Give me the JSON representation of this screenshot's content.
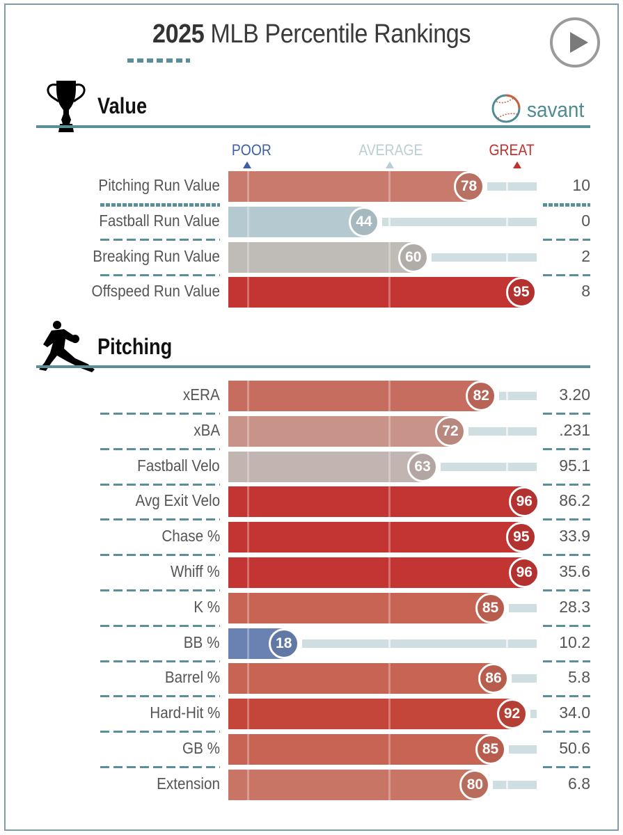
{
  "header": {
    "title_year": "2025",
    "title_rest": "MLB Percentile Rankings",
    "play_icon": "play-circle-icon",
    "brand": "savant",
    "brand_icon": "baseball-icon"
  },
  "scale": {
    "poor_label": "POOR",
    "average_label": "AVERAGE",
    "great_label": "GREAT",
    "poor_color": "#3d5fa3",
    "average_color": "#b9cfd4",
    "great_color": "#c0312f"
  },
  "colors": {
    "accent": "#5a8f99",
    "track": "#cfdfe1"
  },
  "chart_data": {
    "type": "bar",
    "orientation": "horizontal",
    "title": "2025 MLB Percentile Rankings",
    "xlabel": "Percentile",
    "xlim": [
      0,
      100
    ],
    "scale_markers": {
      "POOR": 6,
      "AVERAGE": 52,
      "GREAT": 94
    },
    "sections": [
      {
        "name": "Value",
        "icon": "trophy-icon",
        "rows": [
          {
            "label": "Pitching Run Value",
            "percentile": 78,
            "value": "10",
            "color": "#c87a6c"
          },
          {
            "label": "Fastball Run Value",
            "percentile": 44,
            "value": "0",
            "color": "#b4c9d0"
          },
          {
            "label": "Breaking Run Value",
            "percentile": 60,
            "value": "2",
            "color": "#bfbcb8"
          },
          {
            "label": "Offspeed Run Value",
            "percentile": 95,
            "value": "8",
            "color": "#c33533"
          }
        ]
      },
      {
        "name": "Pitching",
        "icon": "pitcher-icon",
        "rows": [
          {
            "label": "xERA",
            "percentile": 82,
            "value": "3.20",
            "color": "#c76d5f"
          },
          {
            "label": "xBA",
            "percentile": 72,
            "value": ".231",
            "color": "#c8948a"
          },
          {
            "label": "Fastball Velo",
            "percentile": 63,
            "value": "95.1",
            "color": "#c2b4b0"
          },
          {
            "label": "Avg Exit Velo",
            "percentile": 96,
            "value": "86.2",
            "color": "#c33533"
          },
          {
            "label": "Chase %",
            "percentile": 95,
            "value": "33.9",
            "color": "#c33533"
          },
          {
            "label": "Whiff %",
            "percentile": 96,
            "value": "35.6",
            "color": "#c33533"
          },
          {
            "label": "K %",
            "percentile": 85,
            "value": "28.3",
            "color": "#c86454"
          },
          {
            "label": "BB %",
            "percentile": 18,
            "value": "10.2",
            "color": "#6a82b2"
          },
          {
            "label": "Barrel %",
            "percentile": 86,
            "value": "5.8",
            "color": "#c86454"
          },
          {
            "label": "Hard-Hit %",
            "percentile": 92,
            "value": "34.0",
            "color": "#c4463a"
          },
          {
            "label": "GB %",
            "percentile": 85,
            "value": "50.6",
            "color": "#c86454"
          },
          {
            "label": "Extension",
            "percentile": 80,
            "value": "6.8",
            "color": "#c87565"
          }
        ]
      }
    ]
  }
}
